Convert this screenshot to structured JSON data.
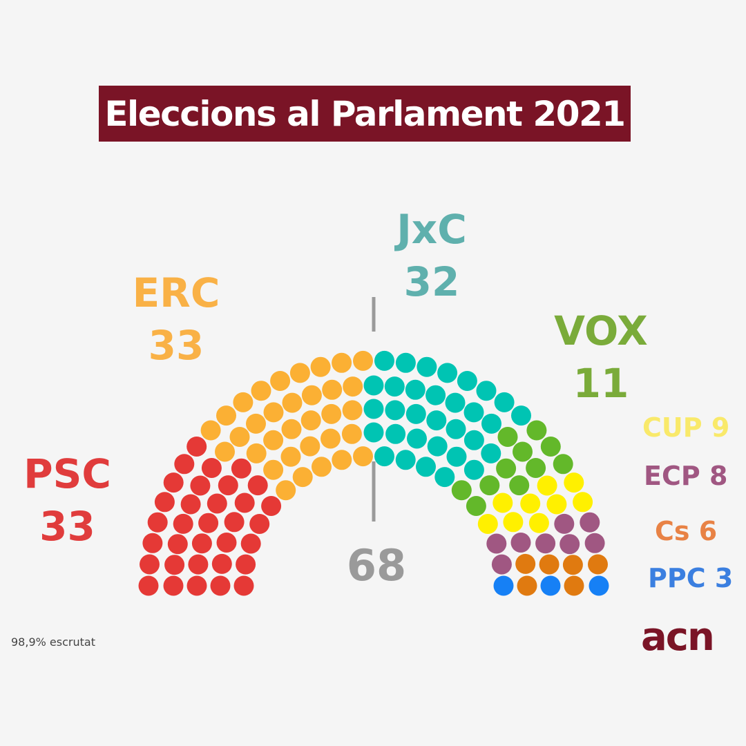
{
  "title": "Eleccions al Parlament 2021",
  "scrutiny": "98,9% escrutat",
  "logo": "acn",
  "chart_data": {
    "type": "hemicycle",
    "total_seats": 135,
    "majority": 68,
    "majority_label": "68",
    "parties": [
      {
        "name": "PSC",
        "seats": 33,
        "color": "#e53936"
      },
      {
        "name": "ERC",
        "seats": 33,
        "color": "#fbb034"
      },
      {
        "name": "JxC",
        "seats": 32,
        "color": "#00c4b3"
      },
      {
        "name": "VOX",
        "seats": 11,
        "color": "#63b82a"
      },
      {
        "name": "CUP",
        "seats": 9,
        "color": "#fff000"
      },
      {
        "name": "ECP",
        "seats": 8,
        "color": "#a05782"
      },
      {
        "name": "Cs",
        "seats": 6,
        "color": "#e07a10"
      },
      {
        "name": "PPC",
        "seats": 3,
        "color": "#1680f5"
      }
    ],
    "label_colors": {
      "PSC": "#e03c3c",
      "ERC": "#f9b146",
      "JxC": "#5fb0ad",
      "VOX": "#7aab3a",
      "CUP": "#f9e96a",
      "ECP": "#a05782",
      "Cs": "#e88245",
      "PPC": "#3b7fe0"
    }
  }
}
